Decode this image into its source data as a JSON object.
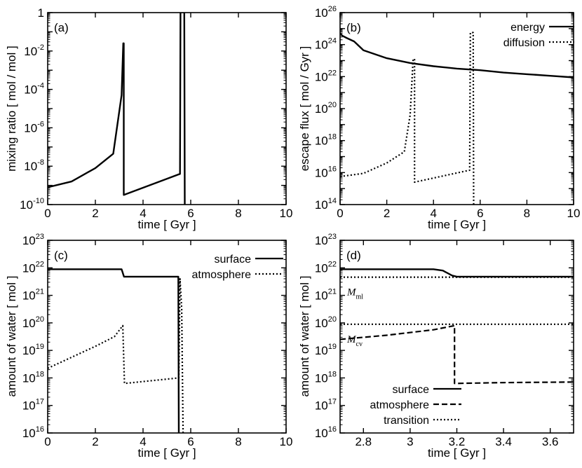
{
  "chart_data": [
    {
      "panel": "(a)",
      "type": "line",
      "xlabel": "time [ Gyr ]",
      "ylabel": "mixing ratio  [ mol / mol ]",
      "xlim": [
        0,
        10
      ],
      "ylim_log10": [
        -10,
        0
      ],
      "xticks": [
        0,
        2,
        4,
        6,
        8,
        10
      ],
      "ytick_labels": [
        {
          "e": -10,
          "base": "10",
          "exp": "-10"
        },
        {
          "e": -8,
          "base": "10",
          "exp": "-8"
        },
        {
          "e": -6,
          "base": "10",
          "exp": "-6"
        },
        {
          "e": -4,
          "base": "10",
          "exp": "-4"
        },
        {
          "e": -2,
          "base": "10",
          "exp": "-2"
        },
        {
          "e": 0,
          "base": "1",
          "exp": ""
        }
      ],
      "legend": [],
      "series": [
        {
          "name": "mixing ratio",
          "style": "solid",
          "points": [
            [
              0,
              -9.1
            ],
            [
              1.0,
              -8.8
            ],
            [
              2.0,
              -8.1
            ],
            [
              2.75,
              -7.35
            ],
            [
              3.1,
              -4.3
            ],
            [
              3.17,
              -1.6
            ],
            [
              3.19,
              -1.6
            ],
            [
              3.19,
              -9.5
            ],
            [
              5.55,
              -8.4
            ],
            [
              5.57,
              0.02
            ],
            [
              5.73,
              0.02
            ],
            [
              5.75,
              -10
            ]
          ]
        }
      ]
    },
    {
      "panel": "(b)",
      "type": "line",
      "xlabel": "time [ Gyr ]",
      "ylabel": "escape flux  [ mol / Gyr ]",
      "xlim": [
        0,
        10
      ],
      "ylim_log10": [
        14,
        26
      ],
      "xticks": [
        0,
        2,
        4,
        6,
        8,
        10
      ],
      "ytick_labels": [
        {
          "e": 14,
          "base": "10",
          "exp": "14"
        },
        {
          "e": 16,
          "base": "10",
          "exp": "16"
        },
        {
          "e": 18,
          "base": "10",
          "exp": "18"
        },
        {
          "e": 20,
          "base": "10",
          "exp": "20"
        },
        {
          "e": 22,
          "base": "10",
          "exp": "22"
        },
        {
          "e": 24,
          "base": "10",
          "exp": "24"
        },
        {
          "e": 26,
          "base": "10",
          "exp": "26"
        }
      ],
      "legend": [
        "energy",
        "diffusion"
      ],
      "series": [
        {
          "name": "energy",
          "style": "solid",
          "points": [
            [
              0,
              24.7
            ],
            [
              0.1,
              24.55
            ],
            [
              0.3,
              24.4
            ],
            [
              0.6,
              24.2
            ],
            [
              1.0,
              23.65
            ],
            [
              2.0,
              23.15
            ],
            [
              3.0,
              22.85
            ],
            [
              4.0,
              22.65
            ],
            [
              5.0,
              22.5
            ],
            [
              6.0,
              22.4
            ],
            [
              7.0,
              22.25
            ],
            [
              8.0,
              22.15
            ],
            [
              9.0,
              22.05
            ],
            [
              10.0,
              21.95
            ]
          ]
        },
        {
          "name": "diffusion",
          "style": "dotted",
          "points": [
            [
              0,
              15.75
            ],
            [
              1.0,
              15.95
            ],
            [
              2.0,
              16.6
            ],
            [
              2.75,
              17.3
            ],
            [
              3.0,
              19.6
            ],
            [
              3.13,
              23.1
            ],
            [
              3.19,
              23.1
            ],
            [
              3.19,
              15.4
            ],
            [
              5.55,
              16.15
            ],
            [
              5.58,
              24.75
            ],
            [
              5.7,
              24.75
            ],
            [
              5.72,
              14
            ]
          ]
        }
      ]
    },
    {
      "panel": "(c)",
      "type": "line",
      "xlabel": "time [ Gyr ]",
      "ylabel": "amount of water [ mol ]",
      "xlim": [
        0,
        10
      ],
      "ylim_log10": [
        16,
        23
      ],
      "xticks": [
        0,
        2,
        4,
        6,
        8,
        10
      ],
      "ytick_labels": [
        {
          "e": 16,
          "base": "10",
          "exp": "16"
        },
        {
          "e": 17,
          "base": "10",
          "exp": "17"
        },
        {
          "e": 18,
          "base": "10",
          "exp": "18"
        },
        {
          "e": 19,
          "base": "10",
          "exp": "19"
        },
        {
          "e": 20,
          "base": "10",
          "exp": "20"
        },
        {
          "e": 21,
          "base": "10",
          "exp": "21"
        },
        {
          "e": 22,
          "base": "10",
          "exp": "22"
        },
        {
          "e": 23,
          "base": "10",
          "exp": "23"
        }
      ],
      "legend": [
        "surface",
        "atmosphere"
      ],
      "series": [
        {
          "name": "surface",
          "style": "solid",
          "points": [
            [
              0,
              21.95
            ],
            [
              3.1,
              21.95
            ],
            [
              3.2,
              21.68
            ],
            [
              5.48,
              21.68
            ],
            [
              5.5,
              16
            ]
          ]
        },
        {
          "name": "atmosphere",
          "style": "dotted",
          "points": [
            [
              0,
              18.35
            ],
            [
              1.0,
              18.75
            ],
            [
              2.0,
              19.15
            ],
            [
              2.8,
              19.5
            ],
            [
              3.15,
              19.9
            ],
            [
              3.22,
              17.8
            ],
            [
              5.5,
              18.0
            ],
            [
              5.55,
              21.6
            ],
            [
              5.62,
              20.5
            ],
            [
              5.68,
              16
            ]
          ]
        }
      ]
    },
    {
      "panel": "(d)",
      "type": "line",
      "xlabel": "time [ Gyr ]",
      "ylabel": "amount of water [ mol ]",
      "xlim": [
        2.7,
        3.7
      ],
      "ylim_log10": [
        16,
        23
      ],
      "xticks": [
        2.8,
        3,
        3.2,
        3.4,
        3.6
      ],
      "xtick_labels": [
        "2.8",
        "3",
        "3.2",
        "3.4",
        "3.6"
      ],
      "ytick_labels": [
        {
          "e": 16,
          "base": "10",
          "exp": "16"
        },
        {
          "e": 17,
          "base": "10",
          "exp": "17"
        },
        {
          "e": 18,
          "base": "10",
          "exp": "18"
        },
        {
          "e": 19,
          "base": "10",
          "exp": "19"
        },
        {
          "e": 20,
          "base": "10",
          "exp": "20"
        },
        {
          "e": 21,
          "base": "10",
          "exp": "21"
        },
        {
          "e": 22,
          "base": "10",
          "exp": "22"
        },
        {
          "e": 23,
          "base": "10",
          "exp": "23"
        }
      ],
      "legend": [
        "surface",
        "atmosphere",
        "transition"
      ],
      "annotations": [
        {
          "main": "M",
          "sub": "ml",
          "value_log10": 21.66
        },
        {
          "main": "M",
          "sub": "cv",
          "value_log10": 19.95
        }
      ],
      "series": [
        {
          "name": "surface",
          "style": "solid",
          "points": [
            [
              2.7,
              21.95
            ],
            [
              3.1,
              21.95
            ],
            [
              3.14,
              21.9
            ],
            [
              3.18,
              21.72
            ],
            [
              3.2,
              21.68
            ],
            [
              3.7,
              21.68
            ]
          ]
        },
        {
          "name": "atmosphere",
          "style": "dashed",
          "points": [
            [
              2.7,
              19.4
            ],
            [
              2.9,
              19.55
            ],
            [
              3.1,
              19.75
            ],
            [
              3.19,
              19.9
            ],
            [
              3.19,
              17.8
            ],
            [
              3.4,
              17.83
            ],
            [
              3.7,
              17.85
            ]
          ]
        },
        {
          "name": "transition (M_ml)",
          "style": "dotted",
          "points": [
            [
              2.7,
              21.66
            ],
            [
              3.7,
              21.66
            ]
          ]
        },
        {
          "name": "transition (M_cv)",
          "style": "dotted",
          "points": [
            [
              2.7,
              19.95
            ],
            [
              3.7,
              19.95
            ]
          ]
        }
      ]
    }
  ]
}
